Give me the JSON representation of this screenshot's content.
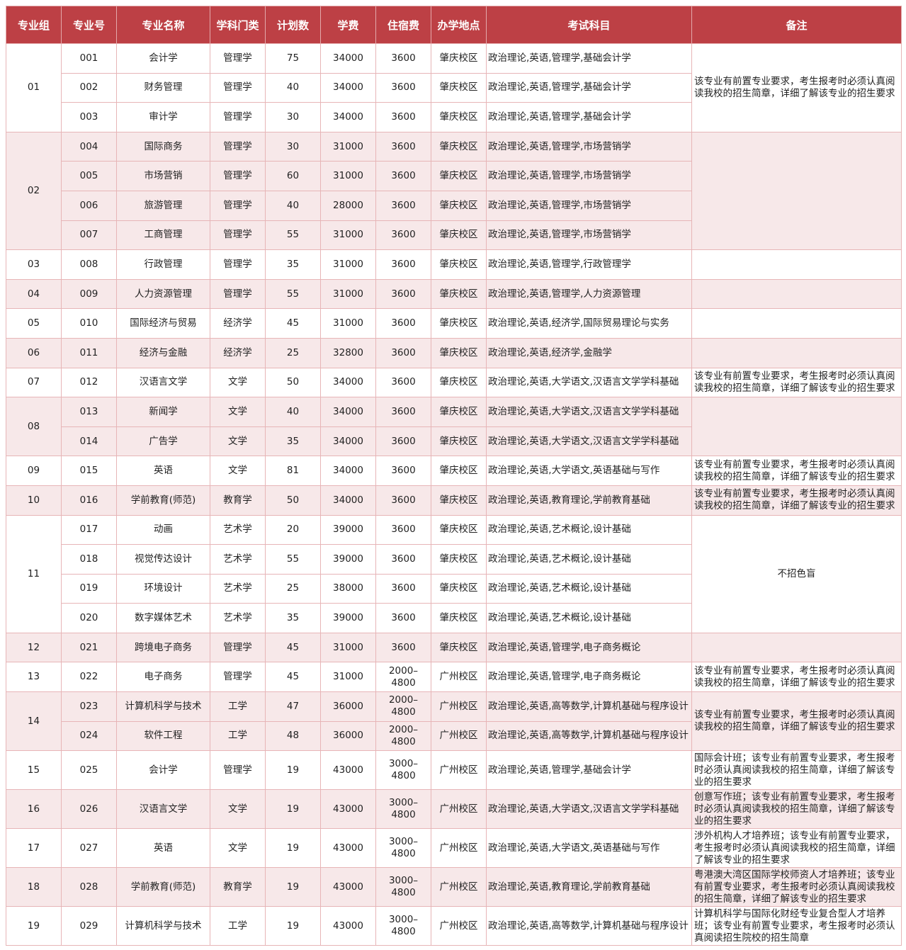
{
  "header": {
    "columns": [
      "专业组",
      "专业号",
      "专业名称",
      "学科门类",
      "计划数",
      "学费",
      "住宿费",
      "办学地点",
      "考试科目",
      "备注"
    ]
  },
  "colors": {
    "header_bg": "#bd4045",
    "alt_row_bg": "#f7e8e9",
    "border": "#e7b5b7"
  },
  "groups": [
    {
      "group": "01",
      "note": "该专业有前置专业要求，考生报考时必须认真阅读我校的招生简章，详细了解该专业的招生要求",
      "rows": [
        {
          "code": "001",
          "name": "会计学",
          "category": "管理学",
          "plan": "75",
          "tuition": "34000",
          "dorm": "3600",
          "campus": "肇庆校区",
          "exam": "政治理论,英语,管理学,基础会计学"
        },
        {
          "code": "002",
          "name": "财务管理",
          "category": "管理学",
          "plan": "40",
          "tuition": "34000",
          "dorm": "3600",
          "campus": "肇庆校区",
          "exam": "政治理论,英语,管理学,基础会计学"
        },
        {
          "code": "003",
          "name": "审计学",
          "category": "管理学",
          "plan": "30",
          "tuition": "34000",
          "dorm": "3600",
          "campus": "肇庆校区",
          "exam": "政治理论,英语,管理学,基础会计学"
        }
      ]
    },
    {
      "group": "02",
      "note": "",
      "rows": [
        {
          "code": "004",
          "name": "国际商务",
          "category": "管理学",
          "plan": "30",
          "tuition": "31000",
          "dorm": "3600",
          "campus": "肇庆校区",
          "exam": "政治理论,英语,管理学,市场营销学"
        },
        {
          "code": "005",
          "name": "市场营销",
          "category": "管理学",
          "plan": "60",
          "tuition": "31000",
          "dorm": "3600",
          "campus": "肇庆校区",
          "exam": "政治理论,英语,管理学,市场营销学"
        },
        {
          "code": "006",
          "name": "旅游管理",
          "category": "管理学",
          "plan": "40",
          "tuition": "28000",
          "dorm": "3600",
          "campus": "肇庆校区",
          "exam": "政治理论,英语,管理学,市场营销学"
        },
        {
          "code": "007",
          "name": "工商管理",
          "category": "管理学",
          "plan": "55",
          "tuition": "31000",
          "dorm": "3600",
          "campus": "肇庆校区",
          "exam": "政治理论,英语,管理学,市场营销学"
        }
      ]
    },
    {
      "group": "03",
      "note": "",
      "rows": [
        {
          "code": "008",
          "name": "行政管理",
          "category": "管理学",
          "plan": "35",
          "tuition": "31000",
          "dorm": "3600",
          "campus": "肇庆校区",
          "exam": "政治理论,英语,管理学,行政管理学"
        }
      ]
    },
    {
      "group": "04",
      "note": "",
      "rows": [
        {
          "code": "009",
          "name": "人力资源管理",
          "category": "管理学",
          "plan": "55",
          "tuition": "31000",
          "dorm": "3600",
          "campus": "肇庆校区",
          "exam": "政治理论,英语,管理学,人力资源管理"
        }
      ]
    },
    {
      "group": "05",
      "note": "",
      "rows": [
        {
          "code": "010",
          "name": "国际经济与贸易",
          "category": "经济学",
          "plan": "45",
          "tuition": "31000",
          "dorm": "3600",
          "campus": "肇庆校区",
          "exam": "政治理论,英语,经济学,国际贸易理论与实务"
        }
      ]
    },
    {
      "group": "06",
      "note": "",
      "rows": [
        {
          "code": "011",
          "name": "经济与金融",
          "category": "经济学",
          "plan": "25",
          "tuition": "32800",
          "dorm": "3600",
          "campus": "肇庆校区",
          "exam": "政治理论,英语,经济学,金融学"
        }
      ]
    },
    {
      "group": "07",
      "note": "该专业有前置专业要求，考生报考时必须认真阅读我校的招生简章，详细了解该专业的招生要求",
      "rows": [
        {
          "code": "012",
          "name": "汉语言文学",
          "category": "文学",
          "plan": "50",
          "tuition": "34000",
          "dorm": "3600",
          "campus": "肇庆校区",
          "exam": "政治理论,英语,大学语文,汉语言文学学科基础"
        }
      ]
    },
    {
      "group": "08",
      "note": "",
      "rows": [
        {
          "code": "013",
          "name": "新闻学",
          "category": "文学",
          "plan": "40",
          "tuition": "34000",
          "dorm": "3600",
          "campus": "肇庆校区",
          "exam": "政治理论,英语,大学语文,汉语言文学学科基础"
        },
        {
          "code": "014",
          "name": "广告学",
          "category": "文学",
          "plan": "35",
          "tuition": "34000",
          "dorm": "3600",
          "campus": "肇庆校区",
          "exam": "政治理论,英语,大学语文,汉语言文学学科基础"
        }
      ]
    },
    {
      "group": "09",
      "note": "该专业有前置专业要求，考生报考时必须认真阅读我校的招生简章，详细了解该专业的招生要求",
      "rows": [
        {
          "code": "015",
          "name": "英语",
          "category": "文学",
          "plan": "81",
          "tuition": "34000",
          "dorm": "3600",
          "campus": "肇庆校区",
          "exam": "政治理论,英语,大学语文,英语基础与写作"
        }
      ]
    },
    {
      "group": "10",
      "note": "该专业有前置专业要求，考生报考时必须认真阅读我校的招生简章，详细了解该专业的招生要求",
      "rows": [
        {
          "code": "016",
          "name": "学前教育(师范)",
          "category": "教育学",
          "plan": "50",
          "tuition": "34000",
          "dorm": "3600",
          "campus": "肇庆校区",
          "exam": "政治理论,英语,教育理论,学前教育基础"
        }
      ]
    },
    {
      "group": "11",
      "note": "不招色盲",
      "center": true,
      "rows": [
        {
          "code": "017",
          "name": "动画",
          "category": "艺术学",
          "plan": "20",
          "tuition": "39000",
          "dorm": "3600",
          "campus": "肇庆校区",
          "exam": "政治理论,英语,艺术概论,设计基础"
        },
        {
          "code": "018",
          "name": "视觉传达设计",
          "category": "艺术学",
          "plan": "55",
          "tuition": "39000",
          "dorm": "3600",
          "campus": "肇庆校区",
          "exam": "政治理论,英语,艺术概论,设计基础"
        },
        {
          "code": "019",
          "name": "环境设计",
          "category": "艺术学",
          "plan": "25",
          "tuition": "38000",
          "dorm": "3600",
          "campus": "肇庆校区",
          "exam": "政治理论,英语,艺术概论,设计基础"
        },
        {
          "code": "020",
          "name": "数字媒体艺术",
          "category": "艺术学",
          "plan": "35",
          "tuition": "39000",
          "dorm": "3600",
          "campus": "肇庆校区",
          "exam": "政治理论,英语,艺术概论,设计基础"
        }
      ]
    },
    {
      "group": "12",
      "note": "",
      "rows": [
        {
          "code": "021",
          "name": "跨境电子商务",
          "category": "管理学",
          "plan": "45",
          "tuition": "31000",
          "dorm": "3600",
          "campus": "肇庆校区",
          "exam": "政治理论,英语,管理学,电子商务概论"
        }
      ]
    },
    {
      "group": "13",
      "note": "该专业有前置专业要求，考生报考时必须认真阅读我校的招生简章，详细了解该专业的招生要求",
      "rows": [
        {
          "code": "022",
          "name": "电子商务",
          "category": "管理学",
          "plan": "45",
          "tuition": "31000",
          "dorm": "2000–\n4800",
          "campus": "广州校区",
          "exam": "政治理论,英语,管理学,电子商务概论"
        }
      ]
    },
    {
      "group": "14",
      "note": "该专业有前置专业要求，考生报考时必须认真阅读我校的招生简章，详细了解该专业的招生要求",
      "rows": [
        {
          "code": "023",
          "name": "计算机科学与技术",
          "category": "工学",
          "plan": "47",
          "tuition": "36000",
          "dorm": "2000–\n4800",
          "campus": "广州校区",
          "exam": "政治理论,英语,高等数学,计算机基础与程序设计"
        },
        {
          "code": "024",
          "name": "软件工程",
          "category": "工学",
          "plan": "48",
          "tuition": "36000",
          "dorm": "2000–\n4800",
          "campus": "广州校区",
          "exam": "政治理论,英语,高等数学,计算机基础与程序设计"
        }
      ]
    },
    {
      "group": "15",
      "tall": true,
      "note": "国际会计班；该专业有前置专业要求，考生报考时必须认真阅读我校的招生简章，详细了解该专业的招生要求",
      "rows": [
        {
          "code": "025",
          "name": "会计学",
          "category": "管理学",
          "plan": "19",
          "tuition": "43000",
          "dorm": "3000–\n4800",
          "campus": "广州校区",
          "exam": "政治理论,英语,管理学,基础会计学"
        }
      ]
    },
    {
      "group": "16",
      "tall": true,
      "note": "创意写作班；该专业有前置专业要求，考生报考时必须认真阅读我校的招生简章，详细了解该专业的招生要求",
      "rows": [
        {
          "code": "026",
          "name": "汉语言文学",
          "category": "文学",
          "plan": "19",
          "tuition": "43000",
          "dorm": "3000–\n4800",
          "campus": "广州校区",
          "exam": "政治理论,英语,大学语文,汉语言文学学科基础"
        }
      ]
    },
    {
      "group": "17",
      "tall": true,
      "note": "涉外机构人才培养班；该专业有前置专业要求，考生报考时必须认真阅读我校的招生简章，详细了解该专业的招生要求",
      "rows": [
        {
          "code": "027",
          "name": "英语",
          "category": "文学",
          "plan": "19",
          "tuition": "43000",
          "dorm": "3000–\n4800",
          "campus": "广州校区",
          "exam": "政治理论,英语,大学语文,英语基础与写作"
        }
      ]
    },
    {
      "group": "18",
      "tall": true,
      "note": "粤港澳大湾区国际学校师资人才培养班；该专业有前置专业要求，考生报考时必须认真阅读我校的招生简章，详细了解该专业的招生要求",
      "rows": [
        {
          "code": "028",
          "name": "学前教育(师范)",
          "category": "教育学",
          "plan": "19",
          "tuition": "43000",
          "dorm": "3000–\n4800",
          "campus": "广州校区",
          "exam": "政治理论,英语,教育理论,学前教育基础"
        }
      ]
    },
    {
      "group": "19",
      "tall": true,
      "note": "计算机科学与国际化财经专业复合型人才培养班；该专业有前置专业要求，考生报考时必须认真阅读招生院校的招生简章",
      "rows": [
        {
          "code": "029",
          "name": "计算机科学与技术",
          "category": "工学",
          "plan": "19",
          "tuition": "43000",
          "dorm": "3000–\n4800",
          "campus": "广州校区",
          "exam": "政治理论,英语,高等数学,计算机基础与程序设计"
        }
      ]
    }
  ]
}
